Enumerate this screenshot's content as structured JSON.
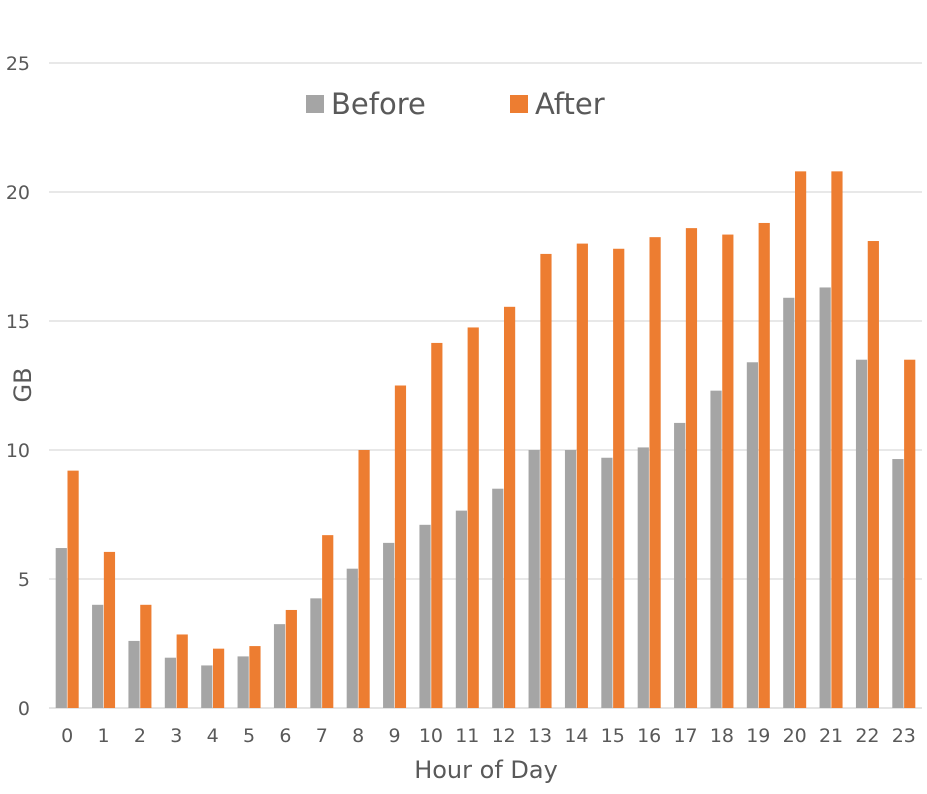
{
  "chart_data": {
    "type": "bar",
    "xlabel": "Hour of Day",
    "ylabel": "GB",
    "ylim": [
      0,
      25
    ],
    "yticks": [
      0,
      5,
      10,
      15,
      20,
      25
    ],
    "grid": true,
    "legend_position": "top-center",
    "categories": [
      "0",
      "1",
      "2",
      "3",
      "4",
      "5",
      "6",
      "7",
      "8",
      "9",
      "10",
      "11",
      "12",
      "13",
      "14",
      "15",
      "16",
      "17",
      "18",
      "19",
      "20",
      "21",
      "22",
      "23"
    ],
    "series": [
      {
        "name": "Before",
        "color": "#a5a5a5",
        "values": [
          6.2,
          4.0,
          2.6,
          1.95,
          1.65,
          2.0,
          3.25,
          4.25,
          5.4,
          6.4,
          7.1,
          7.65,
          8.5,
          10.0,
          10.0,
          9.7,
          10.1,
          11.05,
          12.3,
          13.4,
          15.9,
          16.3,
          13.5,
          9.65
        ]
      },
      {
        "name": "After",
        "color": "#ed7d31",
        "values": [
          9.2,
          6.05,
          4.0,
          2.85,
          2.3,
          2.4,
          3.8,
          6.7,
          10.0,
          12.5,
          14.15,
          14.75,
          15.55,
          17.6,
          18.0,
          17.8,
          18.25,
          18.6,
          18.35,
          18.8,
          20.8,
          20.8,
          18.1,
          13.5
        ]
      }
    ]
  }
}
